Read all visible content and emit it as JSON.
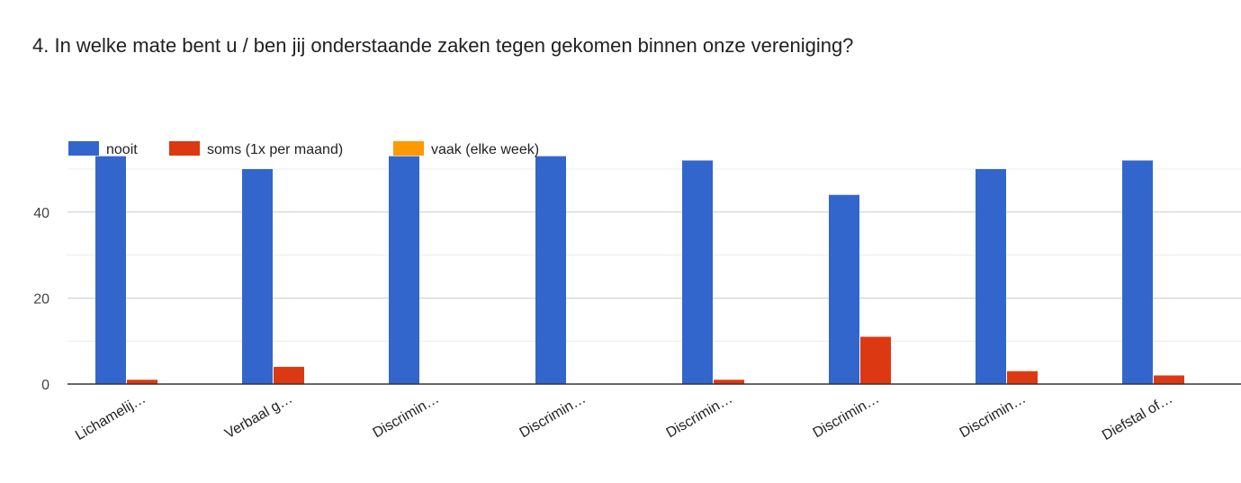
{
  "title": "4. In welke mate bent u / ben jij onderstaande zaken tegen gekomen binnen onze vereniging?",
  "chart_data": {
    "type": "bar",
    "categories": [
      "Lichamelij…",
      "Verbaal g…",
      "Discrimin…",
      "Discrimin…",
      "Discrimin…",
      "Discrimin…",
      "Discrimin…",
      "Diefstal of…"
    ],
    "series": [
      {
        "name": "nooit",
        "color": "#3366cc",
        "values": [
          53,
          50,
          53,
          53,
          52,
          44,
          50,
          52
        ]
      },
      {
        "name": "soms (1x per maand)",
        "color": "#dc3912",
        "values": [
          1,
          4,
          0,
          0,
          1,
          11,
          3,
          2
        ]
      },
      {
        "name": "vaak (elke week)",
        "color": "#ff9900",
        "values": [
          0,
          0,
          0,
          0,
          0,
          0,
          0,
          0
        ]
      }
    ],
    "yticks": [
      "0",
      "20",
      "40"
    ],
    "ylim": [
      0,
      50
    ],
    "grid": true,
    "legend": "top-left"
  }
}
